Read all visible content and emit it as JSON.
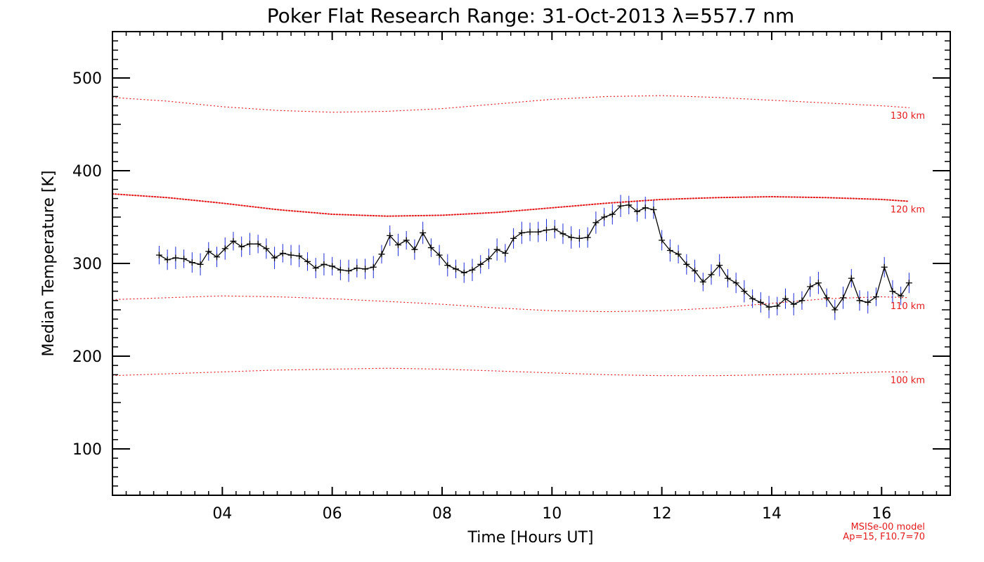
{
  "chart_data": {
    "type": "line",
    "title": "Poker Flat Research Range: 31-Oct-2013 λ=557.7 nm",
    "xlabel": "Time [Hours UT]",
    "ylabel": "Median Temperature [K]",
    "xlim": [
      2.0,
      17.25
    ],
    "ylim": [
      50,
      550
    ],
    "xticks": [
      4,
      6,
      8,
      10,
      12,
      14,
      16
    ],
    "xtick_labels": [
      "04",
      "06",
      "08",
      "10",
      "12",
      "14",
      "16"
    ],
    "yticks": [
      100,
      200,
      300,
      400,
      500
    ],
    "ytick_labels": [
      "100",
      "200",
      "300",
      "400",
      "500"
    ],
    "grid": false,
    "series": [
      {
        "name": "Median Temperature",
        "style": "line with + markers and vertical error bars",
        "color": "#000000",
        "errorbar_color": "#1f2bd6",
        "x": [
          2.85,
          3.0,
          3.15,
          3.3,
          3.45,
          3.6,
          3.75,
          3.9,
          4.05,
          4.2,
          4.35,
          4.5,
          4.65,
          4.8,
          4.95,
          5.1,
          5.25,
          5.4,
          5.55,
          5.7,
          5.85,
          6.0,
          6.15,
          6.3,
          6.45,
          6.6,
          6.75,
          6.9,
          7.05,
          7.2,
          7.35,
          7.5,
          7.65,
          7.8,
          7.95,
          8.1,
          8.25,
          8.4,
          8.55,
          8.7,
          8.85,
          9.0,
          9.15,
          9.3,
          9.45,
          9.6,
          9.75,
          9.9,
          10.05,
          10.2,
          10.35,
          10.5,
          10.65,
          10.8,
          10.95,
          11.1,
          11.25,
          11.4,
          11.55,
          11.7,
          11.85,
          12.0,
          12.15,
          12.3,
          12.45,
          12.6,
          12.75,
          12.9,
          13.05,
          13.2,
          13.35,
          13.5,
          13.65,
          13.8,
          13.95,
          14.1,
          14.25,
          14.4,
          14.55,
          14.7,
          14.85,
          15.0,
          15.15,
          15.3,
          15.45,
          15.6,
          15.75,
          15.9,
          16.05,
          16.2,
          16.35,
          16.5
        ],
        "y": [
          309,
          304,
          306,
          305,
          301,
          299,
          313,
          307,
          316,
          324,
          318,
          321,
          321,
          316,
          306,
          311,
          309,
          308,
          302,
          295,
          299,
          297,
          293,
          292,
          295,
          294,
          296,
          310,
          330,
          320,
          325,
          315,
          333,
          317,
          309,
          298,
          294,
          290,
          293,
          299,
          305,
          315,
          311,
          327,
          333,
          334,
          334,
          336,
          337,
          332,
          328,
          327,
          328,
          344,
          350,
          353,
          362,
          363,
          356,
          360,
          358,
          325,
          314,
          310,
          299,
          292,
          280,
          288,
          298,
          284,
          279,
          270,
          262,
          258,
          253,
          254,
          262,
          256,
          260,
          275,
          279,
          263,
          250,
          263,
          284,
          260,
          258,
          264,
          296,
          270,
          265,
          279
        ],
        "errors": [
          10,
          11,
          12,
          10,
          11,
          12,
          10,
          11,
          12,
          10,
          11,
          12,
          10,
          11,
          12,
          10,
          11,
          12,
          10,
          11,
          12,
          10,
          11,
          12,
          10,
          11,
          12,
          10,
          11,
          12,
          10,
          11,
          12,
          10,
          11,
          12,
          10,
          11,
          12,
          10,
          11,
          12,
          10,
          11,
          12,
          10,
          11,
          12,
          10,
          11,
          12,
          10,
          11,
          12,
          10,
          11,
          12,
          10,
          11,
          12,
          10,
          11,
          12,
          10,
          11,
          12,
          10,
          11,
          12,
          10,
          11,
          12,
          10,
          11,
          12,
          10,
          11,
          12,
          10,
          11,
          12,
          10,
          11,
          12,
          10,
          11,
          12,
          10,
          11,
          12,
          10,
          11
        ]
      }
    ],
    "model_curves": [
      {
        "label": "130 km",
        "color": "#e41a1c",
        "dot": "sparse",
        "x": [
          2.0,
          3.0,
          4.0,
          5.0,
          6.0,
          7.0,
          8.0,
          9.0,
          10.0,
          11.0,
          12.0,
          13.0,
          14.0,
          15.0,
          16.0,
          16.5
        ],
        "y": [
          479,
          475,
          469,
          465,
          463,
          464,
          467,
          472,
          477,
          480,
          481,
          479,
          476,
          473,
          470,
          468
        ]
      },
      {
        "label": "120 km",
        "color": "#e41a1c",
        "dot": "dense",
        "x": [
          2.0,
          3.0,
          4.0,
          5.0,
          6.0,
          7.0,
          8.0,
          9.0,
          10.0,
          11.0,
          12.0,
          13.0,
          14.0,
          15.0,
          16.0,
          16.5
        ],
        "y": [
          375,
          371,
          365,
          358,
          353,
          351,
          352,
          355,
          360,
          365,
          369,
          371,
          372,
          371,
          369,
          367
        ]
      },
      {
        "label": "110 km",
        "color": "#e41a1c",
        "dot": "sparse",
        "x": [
          2.0,
          3.0,
          4.0,
          5.0,
          6.0,
          7.0,
          8.0,
          9.0,
          10.0,
          11.0,
          12.0,
          13.0,
          14.0,
          15.0,
          16.0,
          16.5
        ],
        "y": [
          261,
          263,
          265,
          264,
          262,
          259,
          256,
          252,
          249,
          248,
          249,
          252,
          257,
          262,
          264,
          263
        ]
      },
      {
        "label": "100 km",
        "color": "#e41a1c",
        "dot": "sparse",
        "x": [
          2.0,
          3.0,
          4.0,
          5.0,
          6.0,
          7.0,
          8.0,
          9.0,
          10.0,
          11.0,
          12.0,
          13.0,
          14.0,
          15.0,
          16.0,
          16.5
        ],
        "y": [
          179,
          181,
          183,
          185,
          186,
          187,
          186,
          184,
          182,
          180,
          179,
          179,
          180,
          181,
          183,
          183
        ]
      }
    ],
    "annotations": [
      "MSISe-00 model",
      "Ap=15, F10.7=70"
    ],
    "accent_color": "#e41a1c"
  }
}
